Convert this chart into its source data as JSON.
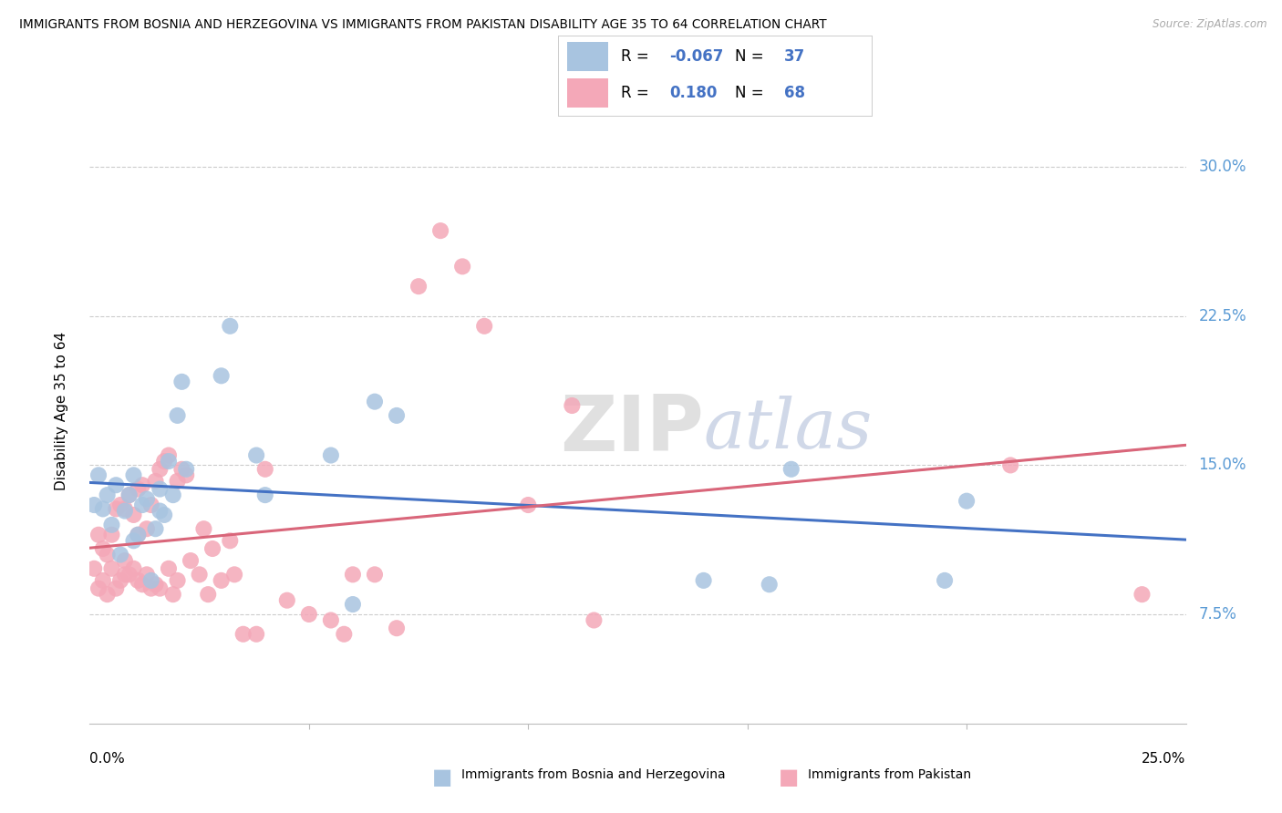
{
  "title": "IMMIGRANTS FROM BOSNIA AND HERZEGOVINA VS IMMIGRANTS FROM PAKISTAN DISABILITY AGE 35 TO 64 CORRELATION CHART",
  "source": "Source: ZipAtlas.com",
  "ylabel": "Disability Age 35 to 64",
  "xlim": [
    0.0,
    0.25
  ],
  "ylim": [
    0.02,
    0.335
  ],
  "ytick_values": [
    0.075,
    0.15,
    0.225,
    0.3
  ],
  "ytick_labels": [
    "7.5%",
    "15.0%",
    "22.5%",
    "30.0%"
  ],
  "legend_bosnia_R": "-0.067",
  "legend_bosnia_N": "37",
  "legend_pakistan_R": "0.180",
  "legend_pakistan_N": "68",
  "bosnia_color": "#a8c4e0",
  "pakistan_color": "#f4a8b8",
  "bosnia_line_color": "#4472c4",
  "pakistan_line_color": "#d9667a",
  "right_label_color": "#5b9bd5",
  "all_text_blue": "#4472c4",
  "bosnia_x": [
    0.001,
    0.002,
    0.003,
    0.004,
    0.005,
    0.006,
    0.007,
    0.008,
    0.009,
    0.01,
    0.01,
    0.011,
    0.012,
    0.013,
    0.014,
    0.015,
    0.016,
    0.016,
    0.017,
    0.018,
    0.019,
    0.02,
    0.021,
    0.022,
    0.03,
    0.032,
    0.038,
    0.04,
    0.055,
    0.06,
    0.065,
    0.07,
    0.14,
    0.155,
    0.16,
    0.195,
    0.2
  ],
  "bosnia_y": [
    0.13,
    0.145,
    0.128,
    0.135,
    0.12,
    0.14,
    0.105,
    0.127,
    0.135,
    0.145,
    0.112,
    0.115,
    0.13,
    0.133,
    0.092,
    0.118,
    0.138,
    0.127,
    0.125,
    0.152,
    0.135,
    0.175,
    0.192,
    0.148,
    0.195,
    0.22,
    0.155,
    0.135,
    0.155,
    0.08,
    0.182,
    0.175,
    0.092,
    0.09,
    0.148,
    0.092,
    0.132
  ],
  "pakistan_x": [
    0.001,
    0.002,
    0.002,
    0.003,
    0.003,
    0.004,
    0.004,
    0.005,
    0.005,
    0.006,
    0.006,
    0.007,
    0.007,
    0.008,
    0.008,
    0.008,
    0.009,
    0.009,
    0.01,
    0.01,
    0.011,
    0.011,
    0.011,
    0.012,
    0.012,
    0.013,
    0.013,
    0.014,
    0.014,
    0.015,
    0.015,
    0.016,
    0.016,
    0.017,
    0.018,
    0.018,
    0.019,
    0.02,
    0.02,
    0.021,
    0.022,
    0.023,
    0.025,
    0.026,
    0.027,
    0.028,
    0.03,
    0.032,
    0.033,
    0.035,
    0.038,
    0.04,
    0.045,
    0.05,
    0.055,
    0.058,
    0.06,
    0.065,
    0.07,
    0.075,
    0.08,
    0.085,
    0.09,
    0.1,
    0.11,
    0.115,
    0.21,
    0.24
  ],
  "pakistan_y": [
    0.098,
    0.088,
    0.115,
    0.092,
    0.108,
    0.085,
    0.105,
    0.098,
    0.115,
    0.088,
    0.128,
    0.092,
    0.13,
    0.095,
    0.102,
    0.128,
    0.095,
    0.135,
    0.098,
    0.125,
    0.092,
    0.115,
    0.138,
    0.09,
    0.14,
    0.095,
    0.118,
    0.088,
    0.13,
    0.142,
    0.09,
    0.148,
    0.088,
    0.152,
    0.098,
    0.155,
    0.085,
    0.142,
    0.092,
    0.148,
    0.145,
    0.102,
    0.095,
    0.118,
    0.085,
    0.108,
    0.092,
    0.112,
    0.095,
    0.065,
    0.065,
    0.148,
    0.082,
    0.075,
    0.072,
    0.065,
    0.095,
    0.095,
    0.068,
    0.24,
    0.268,
    0.25,
    0.22,
    0.13,
    0.18,
    0.072,
    0.15,
    0.085
  ]
}
